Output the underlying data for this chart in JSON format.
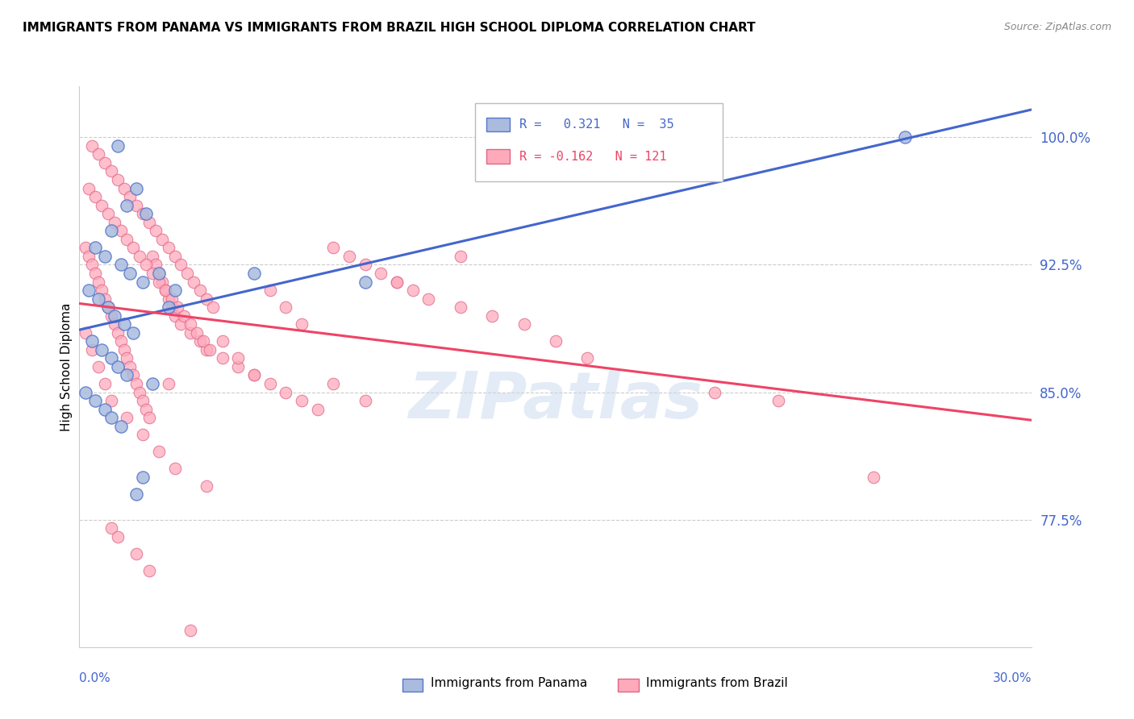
{
  "title": "IMMIGRANTS FROM PANAMA VS IMMIGRANTS FROM BRAZIL HIGH SCHOOL DIPLOMA CORRELATION CHART",
  "source": "Source: ZipAtlas.com",
  "ylabel": "High School Diploma",
  "xmin": 0.0,
  "xmax": 30.0,
  "ymin": 70.0,
  "ymax": 103.0,
  "yticks": [
    77.5,
    85.0,
    92.5,
    100.0
  ],
  "ytick_labels": [
    "77.5%",
    "85.0%",
    "92.5%",
    "100.0%"
  ],
  "R_panama": 0.321,
  "N_panama": 35,
  "R_brazil": -0.162,
  "N_brazil": 121,
  "blue_fill": "#AABBDD",
  "blue_edge": "#5577CC",
  "pink_fill": "#FFAABB",
  "pink_edge": "#DD6688",
  "blue_line": "#4466CC",
  "pink_line": "#EE4466",
  "watermark_color": "#C8D8EE",
  "panama_points_x": [
    1.2,
    1.8,
    1.5,
    2.1,
    1.0,
    0.5,
    0.8,
    1.3,
    1.6,
    2.0,
    0.3,
    0.6,
    0.9,
    1.1,
    1.4,
    1.7,
    2.5,
    3.0,
    2.8,
    0.4,
    0.7,
    1.0,
    1.2,
    1.5,
    2.3,
    0.2,
    0.5,
    0.8,
    1.0,
    1.3,
    5.5,
    9.0,
    2.0,
    1.8,
    26.0
  ],
  "panama_points_y": [
    99.5,
    97.0,
    96.0,
    95.5,
    94.5,
    93.5,
    93.0,
    92.5,
    92.0,
    91.5,
    91.0,
    90.5,
    90.0,
    89.5,
    89.0,
    88.5,
    92.0,
    91.0,
    90.0,
    88.0,
    87.5,
    87.0,
    86.5,
    86.0,
    85.5,
    85.0,
    84.5,
    84.0,
    83.5,
    83.0,
    92.0,
    91.5,
    80.0,
    79.0,
    100.0
  ],
  "brazil_points_x": [
    0.2,
    0.3,
    0.4,
    0.5,
    0.6,
    0.7,
    0.8,
    0.9,
    1.0,
    1.1,
    1.2,
    1.3,
    1.4,
    1.5,
    1.6,
    1.7,
    1.8,
    1.9,
    2.0,
    2.1,
    2.2,
    2.3,
    2.4,
    2.5,
    2.6,
    2.7,
    2.8,
    2.9,
    3.0,
    3.2,
    3.5,
    3.8,
    4.0,
    4.5,
    5.0,
    5.5,
    6.0,
    6.5,
    7.0,
    7.5,
    8.0,
    8.5,
    9.0,
    9.5,
    10.0,
    10.5,
    11.0,
    12.0,
    13.0,
    14.0,
    0.3,
    0.5,
    0.7,
    0.9,
    1.1,
    1.3,
    1.5,
    1.7,
    1.9,
    2.1,
    2.3,
    2.5,
    2.7,
    2.9,
    3.1,
    3.3,
    3.5,
    3.7,
    3.9,
    4.1,
    0.4,
    0.6,
    0.8,
    1.0,
    1.2,
    1.4,
    1.6,
    1.8,
    2.0,
    2.2,
    2.4,
    2.6,
    2.8,
    3.0,
    3.2,
    3.4,
    3.6,
    3.8,
    4.0,
    4.2,
    4.5,
    5.0,
    5.5,
    6.0,
    6.5,
    7.0,
    8.0,
    9.0,
    10.0,
    12.0,
    0.2,
    0.4,
    0.6,
    0.8,
    1.0,
    1.5,
    2.0,
    2.5,
    3.0,
    4.0,
    15.0,
    16.0,
    20.0,
    22.0,
    25.0,
    1.0,
    1.2,
    1.8,
    2.2,
    2.8,
    3.5
  ],
  "brazil_points_y": [
    93.5,
    93.0,
    92.5,
    92.0,
    91.5,
    91.0,
    90.5,
    90.0,
    89.5,
    89.0,
    88.5,
    88.0,
    87.5,
    87.0,
    86.5,
    86.0,
    85.5,
    85.0,
    84.5,
    84.0,
    83.5,
    93.0,
    92.5,
    92.0,
    91.5,
    91.0,
    90.5,
    90.0,
    89.5,
    89.0,
    88.5,
    88.0,
    87.5,
    87.0,
    86.5,
    86.0,
    85.5,
    85.0,
    84.5,
    84.0,
    93.5,
    93.0,
    92.5,
    92.0,
    91.5,
    91.0,
    90.5,
    90.0,
    89.5,
    89.0,
    97.0,
    96.5,
    96.0,
    95.5,
    95.0,
    94.5,
    94.0,
    93.5,
    93.0,
    92.5,
    92.0,
    91.5,
    91.0,
    90.5,
    90.0,
    89.5,
    89.0,
    88.5,
    88.0,
    87.5,
    99.5,
    99.0,
    98.5,
    98.0,
    97.5,
    97.0,
    96.5,
    96.0,
    95.5,
    95.0,
    94.5,
    94.0,
    93.5,
    93.0,
    92.5,
    92.0,
    91.5,
    91.0,
    90.5,
    90.0,
    88.0,
    87.0,
    86.0,
    91.0,
    90.0,
    89.0,
    85.5,
    84.5,
    91.5,
    93.0,
    88.5,
    87.5,
    86.5,
    85.5,
    84.5,
    83.5,
    82.5,
    81.5,
    80.5,
    79.5,
    88.0,
    87.0,
    85.0,
    84.5,
    80.0,
    77.0,
    76.5,
    75.5,
    74.5,
    85.5,
    71.0
  ]
}
